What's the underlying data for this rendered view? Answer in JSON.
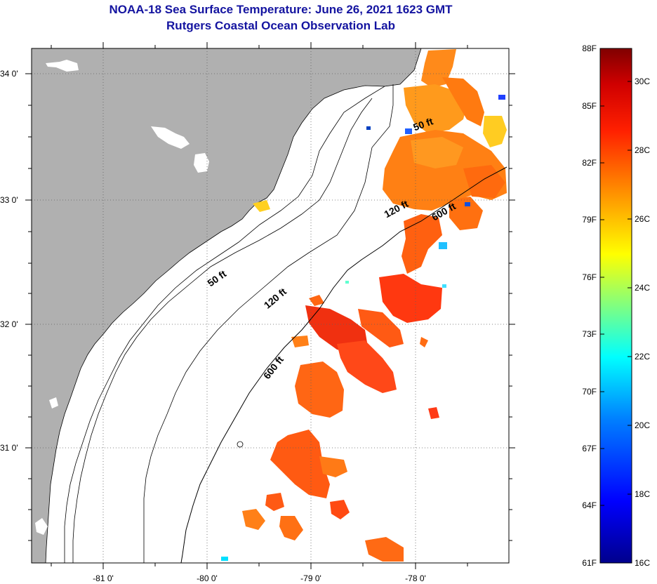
{
  "title": {
    "line1": "NOAA-18 Sea Surface Temperature:  June 26, 2021 1623 GMT",
    "line2": "Rutgers Coastal Ocean Observation Lab"
  },
  "map": {
    "lat_ticks": [
      "34 0'",
      "33 0'",
      "32 0'",
      "31 0'"
    ],
    "lon_ticks": [
      "-81 0'",
      "-80 0'",
      "-79 0'",
      "-78 0'"
    ],
    "contours": [
      "50 ft",
      "120 ft",
      "600 ft",
      "50 ft",
      "120 ft",
      "600 ft"
    ],
    "land_color": "#b0b0b0",
    "ocean_color": "#ffffff"
  },
  "colorbar": {
    "f_labels": [
      "88F",
      "85F",
      "82F",
      "79F",
      "76F",
      "73F",
      "70F",
      "67F",
      "64F",
      "61F"
    ],
    "c_labels": [
      "30C",
      "28C",
      "26C",
      "24C",
      "22C",
      "20C",
      "18C",
      "16C"
    ],
    "colors": [
      "#00008c",
      "#0000ff",
      "#0080ff",
      "#00ffff",
      "#80ff80",
      "#ffff00",
      "#ff9000",
      "#ff2000",
      "#d00000",
      "#800000"
    ]
  }
}
